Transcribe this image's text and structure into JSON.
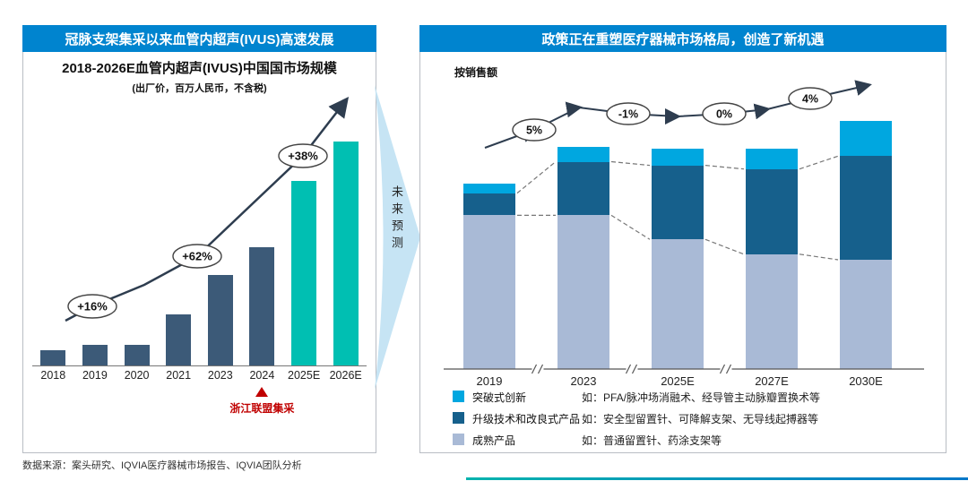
{
  "theme": {
    "header_blue": "#0084CF",
    "bar_historical": "#3C5A78",
    "bar_forecast": "#00BFB2",
    "annotation_red": "#C00000",
    "trend_arrow_color": "#2E3D4F",
    "mid_arrow_fill": "#C6E4F4"
  },
  "left_panel": {
    "header": "冠脉支架集采以来血管内超声(IVUS)高速发展",
    "annotation": {
      "text": "浙江联盟集采",
      "target_category": "2024"
    }
  },
  "middle": {
    "arrow_label": "未来预测"
  },
  "right_panel": {
    "header": "政策正在重塑医疗器械市场格局，创造了新机遇",
    "axis_note": "按销售额"
  },
  "footer": {
    "source": "数据来源：案头研究、IQVIA医疗器械市场报告、IQVIA团队分析"
  },
  "chart_data": [
    {
      "type": "bar",
      "title": "2018-2026E血管内超声(IVUS)中国国市场规模",
      "subtitle": "(出厂价，百万人民币，不含税)",
      "categories": [
        "2018",
        "2019",
        "2020",
        "2021",
        "2023",
        "2024",
        "2025E",
        "2026E"
      ],
      "values": [
        9,
        12,
        12,
        30,
        53,
        69,
        108,
        131
      ],
      "forecast_from_index": 6,
      "growth_labels": [
        "+16%",
        "+62%",
        "+38%"
      ],
      "annotation": "浙江联盟集采",
      "grid": false,
      "legend_position": "none"
    },
    {
      "type": "stacked-bar",
      "title": "按销售额",
      "categories": [
        "2019",
        "2023",
        "2025E",
        "2027E",
        "2030E"
      ],
      "series": [
        {
          "name": "成熟产品",
          "color": "#A9BAD6",
          "values": [
            83,
            83,
            70,
            62,
            59
          ],
          "example": "如：普通留置针、药涂支架等"
        },
        {
          "name": "升级技术和改良式产品",
          "color": "#16608C",
          "values": [
            12,
            29,
            40,
            46,
            56
          ],
          "example": "如：安全型留置针、可降解支架、无导线起搏器等"
        },
        {
          "name": "突破式创新",
          "color": "#00A7E0",
          "values": [
            5,
            8,
            9,
            11,
            19
          ],
          "example": "如：PFA/脉冲场消融术、经导管主动脉瓣置换术等"
        }
      ],
      "growth_labels": [
        "5%",
        "-1%",
        "0%",
        "4%"
      ],
      "axis_breaks": true,
      "grid": false,
      "legend_position": "bottom"
    }
  ]
}
